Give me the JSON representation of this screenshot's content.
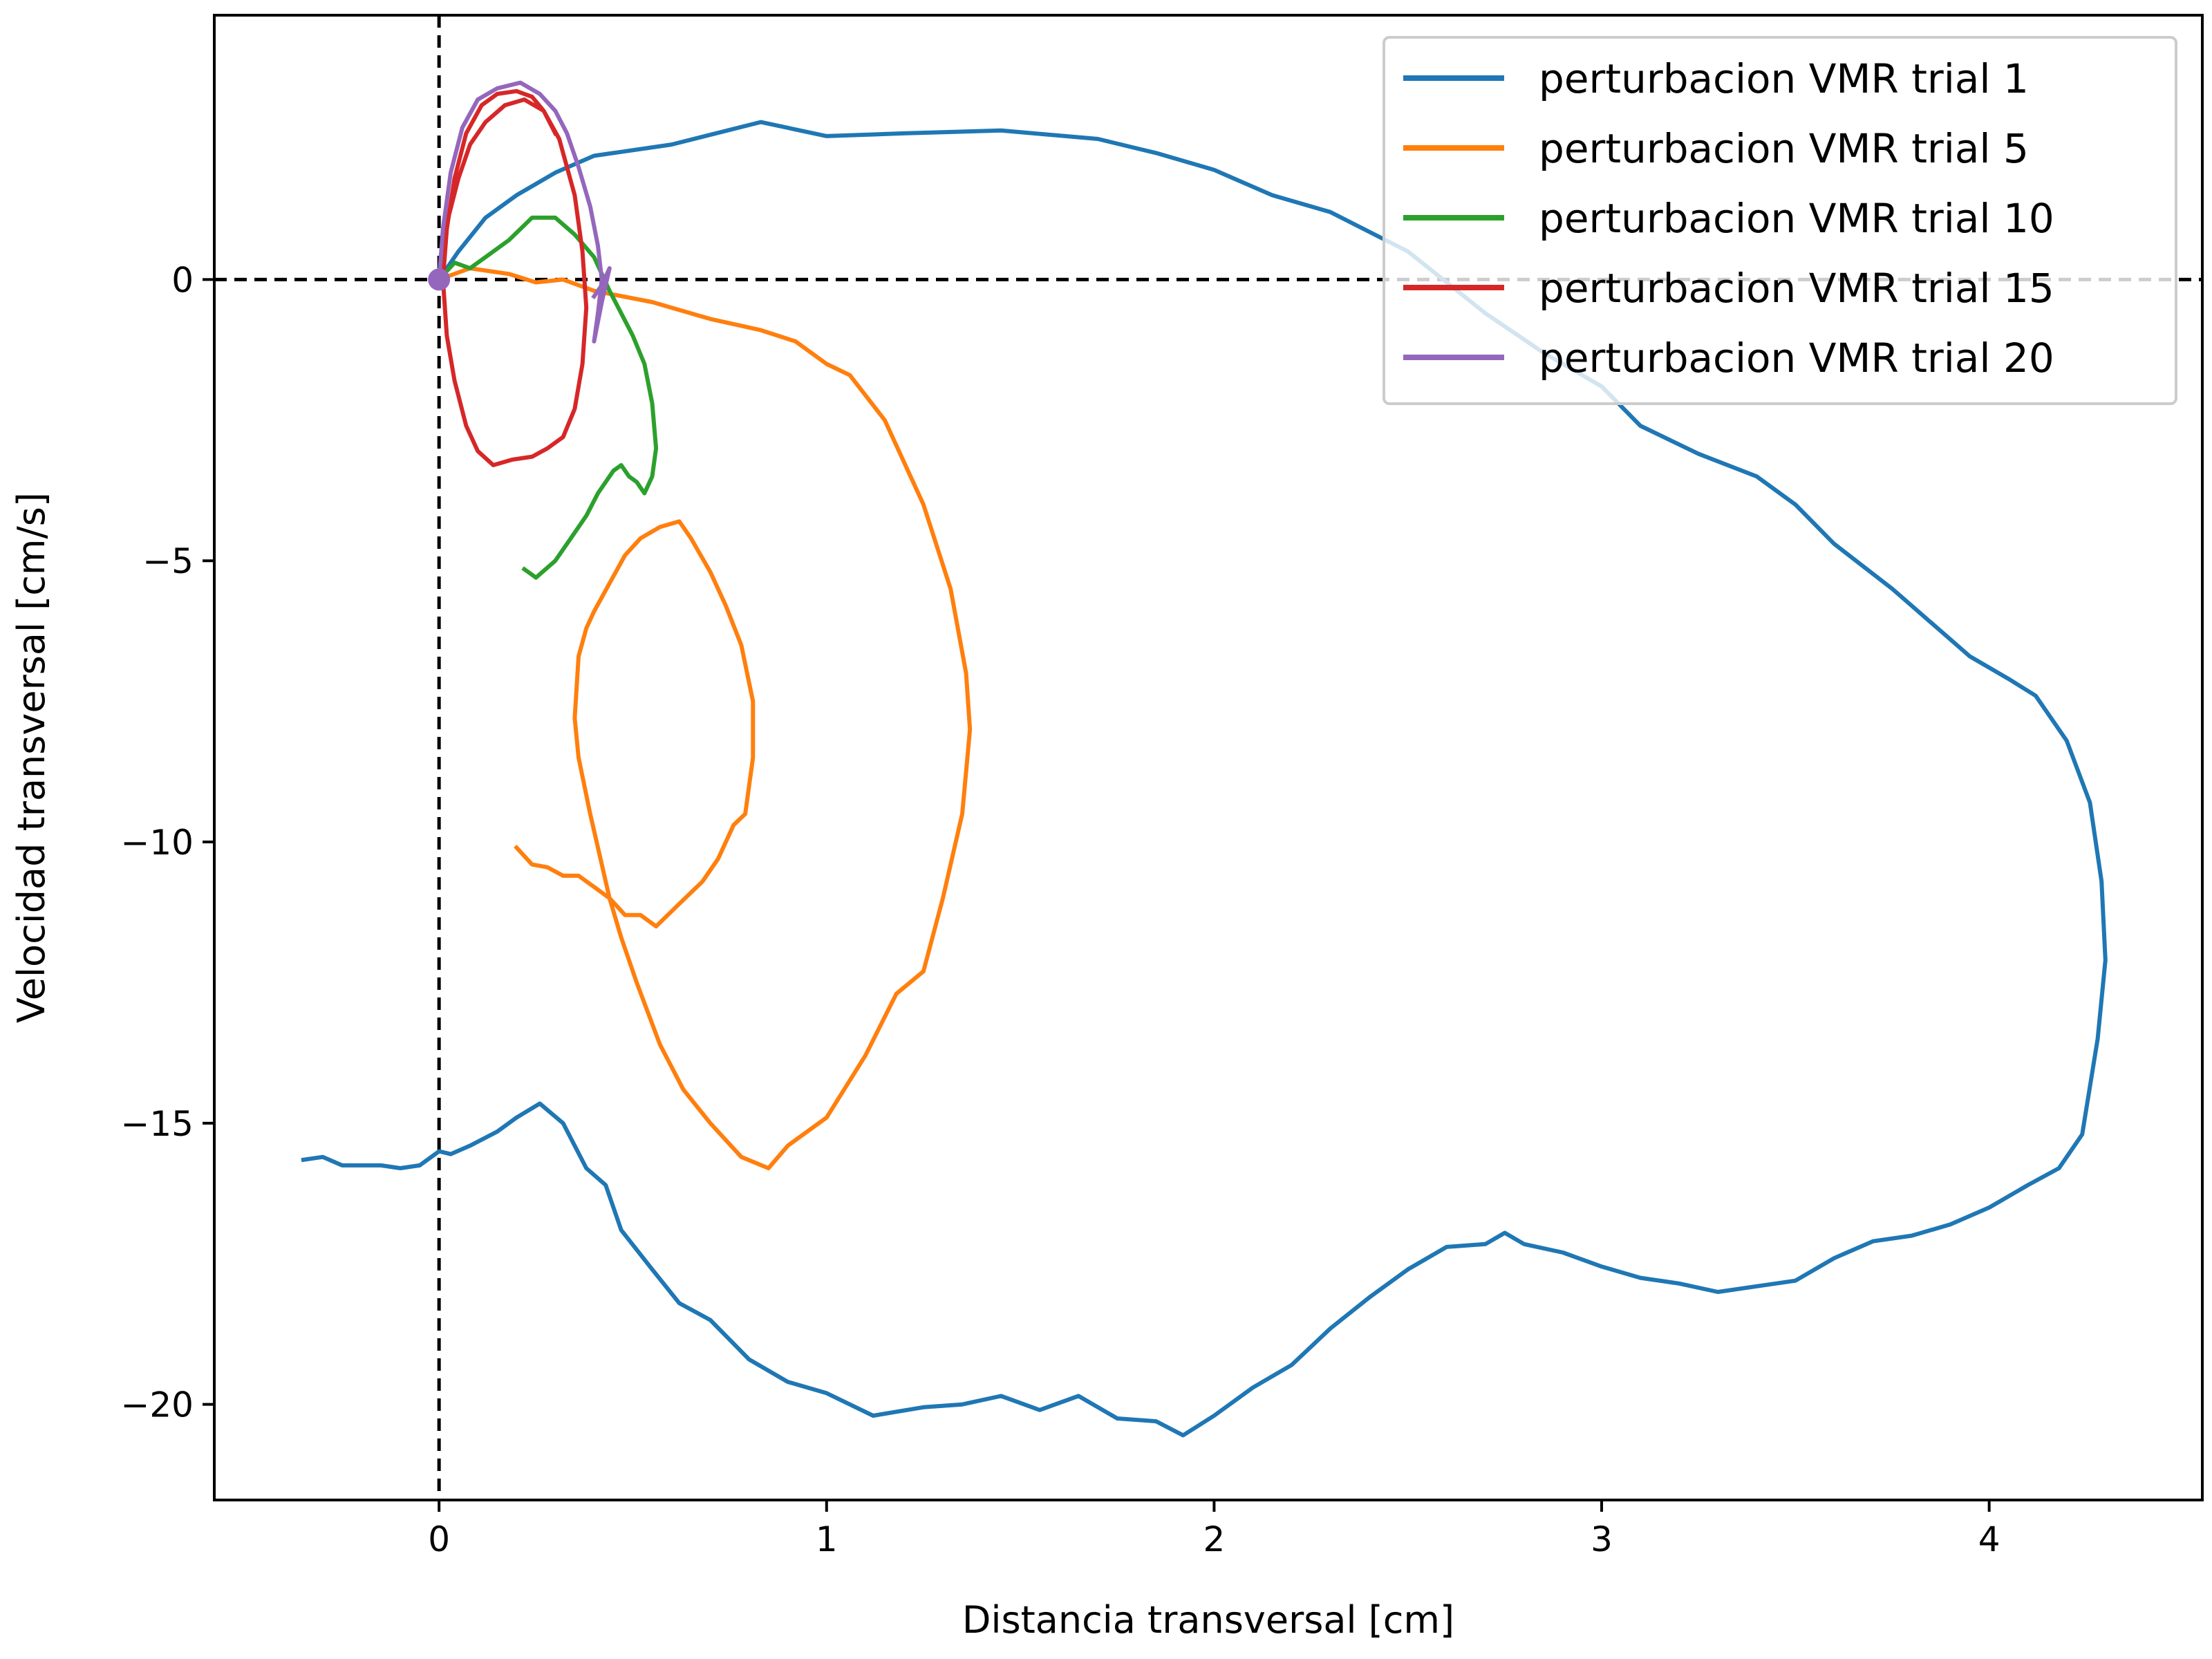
{
  "chart_data": {
    "type": "line",
    "title": "",
    "xlabel": "Distancia transversal [cm]",
    "ylabel": "Velocidad transversal [cm/s]",
    "xlim": [
      -0.58,
      4.55
    ],
    "ylim": [
      -21.7,
      4.7
    ],
    "x_ticks": [
      0,
      1,
      2,
      3,
      4
    ],
    "x_tick_labels": [
      "0",
      "1",
      "2",
      "3",
      "4"
    ],
    "y_ticks": [
      0,
      -5,
      -10,
      -15,
      -20
    ],
    "y_tick_labels": [
      "0",
      "−5",
      "−10",
      "−15",
      "−20"
    ],
    "grid": false,
    "legend_position": "top-right",
    "reference_lines": [
      {
        "orientation": "vertical",
        "value": 0,
        "style": "dashed",
        "color": "#000000"
      },
      {
        "orientation": "horizontal",
        "value": 0,
        "style": "dashed",
        "color": "#000000"
      }
    ],
    "start_marker": {
      "x": 0,
      "y": 0,
      "color": "#9467bd"
    },
    "series": [
      {
        "name": "perturbacion VMR trial 1",
        "color": "#1f77b4",
        "x": [
          0.0,
          0.05,
          0.12,
          0.2,
          0.3,
          0.4,
          0.6,
          0.83,
          1.0,
          1.2,
          1.45,
          1.7,
          1.85,
          2.0,
          2.15,
          2.3,
          2.5,
          2.7,
          2.85,
          3.0,
          3.1,
          3.25,
          3.4,
          3.5,
          3.6,
          3.75,
          3.85,
          3.95,
          4.05,
          4.12,
          4.2,
          4.26,
          4.29,
          4.3,
          4.28,
          4.24,
          4.18,
          4.1,
          4.0,
          3.9,
          3.8,
          3.7,
          3.6,
          3.5,
          3.4,
          3.3,
          3.2,
          3.1,
          3.0,
          2.9,
          2.8,
          2.75,
          2.7,
          2.6,
          2.5,
          2.4,
          2.3,
          2.2,
          2.1,
          2.0,
          1.92,
          1.85,
          1.75,
          1.65,
          1.55,
          1.45,
          1.35,
          1.25,
          1.12,
          1.0,
          0.9,
          0.8,
          0.7,
          0.62,
          0.55,
          0.47,
          0.43,
          0.38,
          0.32,
          0.26,
          0.2,
          0.15,
          0.08,
          0.03,
          0.0,
          -0.05,
          -0.1,
          -0.15,
          -0.2,
          -0.25,
          -0.3,
          -0.35
        ],
        "y": [
          0.0,
          0.5,
          1.1,
          1.5,
          1.9,
          2.2,
          2.4,
          2.8,
          2.55,
          2.6,
          2.65,
          2.5,
          2.25,
          1.95,
          1.5,
          1.2,
          0.5,
          -0.6,
          -1.3,
          -1.9,
          -2.6,
          -3.1,
          -3.5,
          -4.0,
          -4.7,
          -5.5,
          -6.1,
          -6.7,
          -7.1,
          -7.4,
          -8.2,
          -9.3,
          -10.7,
          -12.1,
          -13.5,
          -15.2,
          -15.8,
          -16.1,
          -16.5,
          -16.8,
          -17.0,
          -17.1,
          -17.4,
          -17.8,
          -17.9,
          -18.0,
          -17.85,
          -17.75,
          -17.55,
          -17.3,
          -17.15,
          -16.95,
          -17.15,
          -17.2,
          -17.6,
          -18.1,
          -18.65,
          -19.3,
          -19.7,
          -20.2,
          -20.55,
          -20.3,
          -20.25,
          -19.85,
          -20.1,
          -19.85,
          -20.0,
          -20.05,
          -20.2,
          -19.8,
          -19.6,
          -19.2,
          -18.5,
          -18.2,
          -17.6,
          -16.9,
          -16.1,
          -15.8,
          -15.0,
          -14.65,
          -14.9,
          -15.15,
          -15.4,
          -15.55,
          -15.5,
          -15.75,
          -15.8,
          -15.75,
          -15.75,
          -15.75,
          -15.6,
          -15.65
        ]
      },
      {
        "name": "perturbacion VMR trial 5",
        "color": "#ff7f0e",
        "x": [
          0.0,
          0.08,
          0.18,
          0.25,
          0.32,
          0.4,
          0.55,
          0.7,
          0.83,
          0.92,
          1.0,
          1.06,
          1.15,
          1.25,
          1.32,
          1.36,
          1.37,
          1.35,
          1.3,
          1.25,
          1.18,
          1.1,
          1.0,
          0.9,
          0.85,
          0.78,
          0.7,
          0.63,
          0.57,
          0.51,
          0.47,
          0.44,
          0.42,
          0.39,
          0.36,
          0.35,
          0.36,
          0.38,
          0.4,
          0.44,
          0.48,
          0.52,
          0.57,
          0.62,
          0.65,
          0.7,
          0.74,
          0.78,
          0.81,
          0.81,
          0.79,
          0.76,
          0.72,
          0.68,
          0.62,
          0.56,
          0.52,
          0.48,
          0.44,
          0.4,
          0.36,
          0.32,
          0.28,
          0.24,
          0.2
        ],
        "y": [
          0.0,
          0.2,
          0.1,
          -0.05,
          0.0,
          -0.2,
          -0.4,
          -0.7,
          -0.9,
          -1.1,
          -1.5,
          -1.7,
          -2.5,
          -4.0,
          -5.5,
          -7.0,
          -8.0,
          -9.5,
          -11.0,
          -12.3,
          -12.7,
          -13.8,
          -14.9,
          -15.4,
          -15.8,
          -15.6,
          -15.0,
          -14.4,
          -13.6,
          -12.5,
          -11.7,
          -11.0,
          -10.4,
          -9.5,
          -8.5,
          -7.8,
          -6.7,
          -6.2,
          -5.9,
          -5.4,
          -4.9,
          -4.6,
          -4.4,
          -4.3,
          -4.6,
          -5.2,
          -5.8,
          -6.5,
          -7.5,
          -8.5,
          -9.5,
          -9.7,
          -10.3,
          -10.7,
          -11.1,
          -11.5,
          -11.3,
          -11.3,
          -11.0,
          -10.8,
          -10.6,
          -10.6,
          -10.45,
          -10.4,
          -10.1
        ]
      },
      {
        "name": "perturbacion VMR trial 10",
        "color": "#2ca02c",
        "x": [
          0.0,
          0.04,
          0.08,
          0.12,
          0.18,
          0.24,
          0.3,
          0.35,
          0.4,
          0.44,
          0.47,
          0.5,
          0.53,
          0.55,
          0.56,
          0.55,
          0.53,
          0.51,
          0.49,
          0.47,
          0.45,
          0.43,
          0.41,
          0.38,
          0.34,
          0.3,
          0.25,
          0.22
        ],
        "y": [
          0.0,
          0.3,
          0.2,
          0.4,
          0.7,
          1.1,
          1.1,
          0.8,
          0.4,
          -0.2,
          -0.6,
          -1.0,
          -1.5,
          -2.2,
          -3.0,
          -3.5,
          -3.8,
          -3.6,
          -3.5,
          -3.3,
          -3.4,
          -3.6,
          -3.8,
          -4.2,
          -4.6,
          -5.0,
          -5.3,
          -5.15
        ]
      },
      {
        "name": "perturbacion VMR trial 15",
        "color": "#d62728",
        "x": [
          0.0,
          0.02,
          0.05,
          0.08,
          0.12,
          0.17,
          0.22,
          0.27,
          0.31,
          0.35,
          0.37,
          0.38,
          0.37,
          0.35,
          0.32,
          0.28,
          0.24,
          0.19,
          0.14,
          0.1,
          0.07,
          0.04,
          0.02,
          0.01,
          0.02,
          0.04,
          0.07,
          0.11,
          0.15,
          0.2,
          0.24,
          0.27,
          0.3
        ],
        "y": [
          0.0,
          1.0,
          1.8,
          2.4,
          2.8,
          3.1,
          3.2,
          3.0,
          2.5,
          1.5,
          0.5,
          -0.5,
          -1.5,
          -2.3,
          -2.8,
          -3.0,
          -3.15,
          -3.2,
          -3.3,
          -3.05,
          -2.6,
          -1.8,
          -1.0,
          0.0,
          0.9,
          1.8,
          2.6,
          3.1,
          3.3,
          3.35,
          3.25,
          3.0,
          2.6
        ]
      },
      {
        "name": "perturbacion VMR trial 20",
        "color": "#9467bd",
        "x": [
          0.0,
          0.01,
          0.03,
          0.06,
          0.1,
          0.15,
          0.21,
          0.26,
          0.3,
          0.33,
          0.36,
          0.39,
          0.41,
          0.42,
          0.41,
          0.4,
          0.42,
          0.44,
          0.42,
          0.4
        ],
        "y": [
          0.0,
          0.9,
          1.9,
          2.7,
          3.2,
          3.4,
          3.5,
          3.3,
          3.0,
          2.6,
          2.0,
          1.3,
          0.6,
          0.0,
          -0.6,
          -1.1,
          -0.4,
          0.2,
          -0.1,
          -0.3
        ]
      }
    ]
  }
}
